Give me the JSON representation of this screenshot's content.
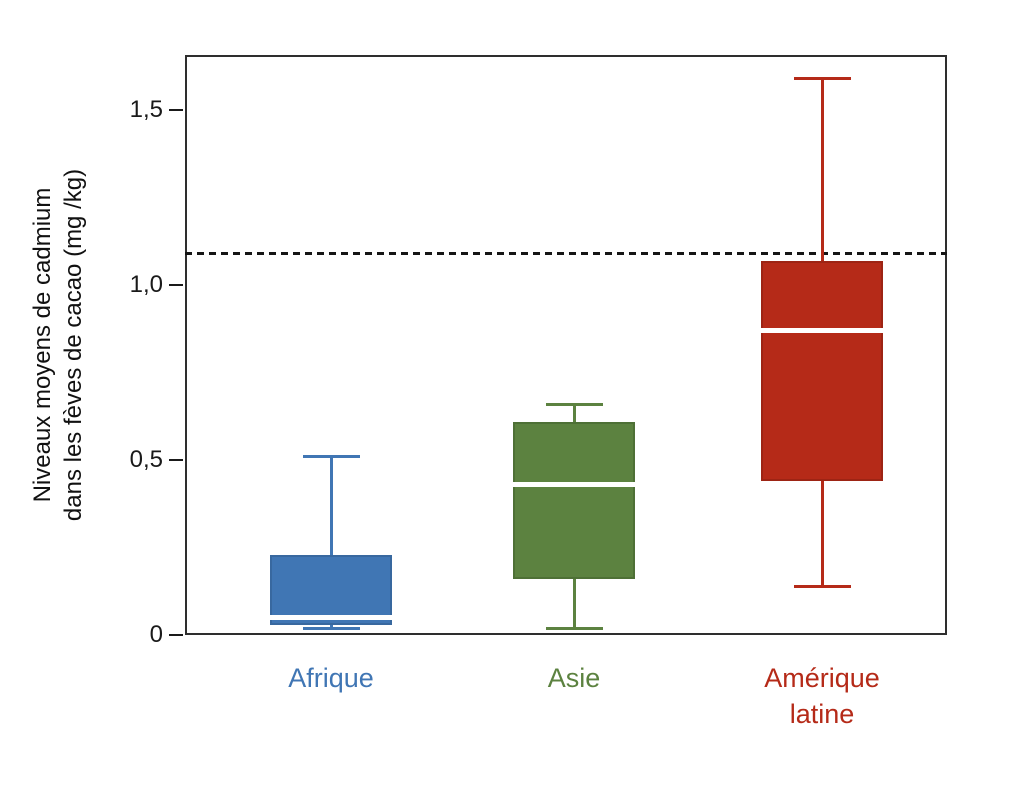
{
  "chart_data": {
    "type": "boxplot",
    "title": "",
    "ylabel_line1": "Niveaux moyens de cadmium",
    "ylabel_line2": "dans les fèves de cacao (mg /kg)",
    "ylim": [
      0,
      1.66
    ],
    "grid": false,
    "legend": false,
    "decimal_style": "comma",
    "y_ticks": [
      {
        "value": 0,
        "label": "0"
      },
      {
        "value": 0.5,
        "label": "0,5"
      },
      {
        "value": 1.0,
        "label": "1,0"
      },
      {
        "value": 1.5,
        "label": "1,5"
      }
    ],
    "threshold_line": {
      "value": 1.09,
      "style": "dashed",
      "color": "#151515"
    },
    "median_color": "#ffffff",
    "categories": [
      {
        "label": "Afrique",
        "label_lines": [
          "Afrique"
        ],
        "color": "#4076b4",
        "border_color": "#38689f",
        "stats": {
          "min": 0.02,
          "q1": 0.03,
          "median": 0.05,
          "q3": 0.23,
          "max": 0.51
        }
      },
      {
        "label": "Asie",
        "label_lines": [
          "Asie"
        ],
        "color": "#5c8240",
        "border_color": "#4e7036",
        "stats": {
          "min": 0.02,
          "q1": 0.16,
          "median": 0.43,
          "q3": 0.61,
          "max": 0.66
        }
      },
      {
        "label": "Amérique latine",
        "label_lines": [
          "Amérique",
          "latine"
        ],
        "color": "#b52a18",
        "border_color": "#9d2414",
        "stats": {
          "min": 0.14,
          "q1": 0.44,
          "median": 0.87,
          "q3": 1.07,
          "max": 1.59
        }
      }
    ]
  }
}
